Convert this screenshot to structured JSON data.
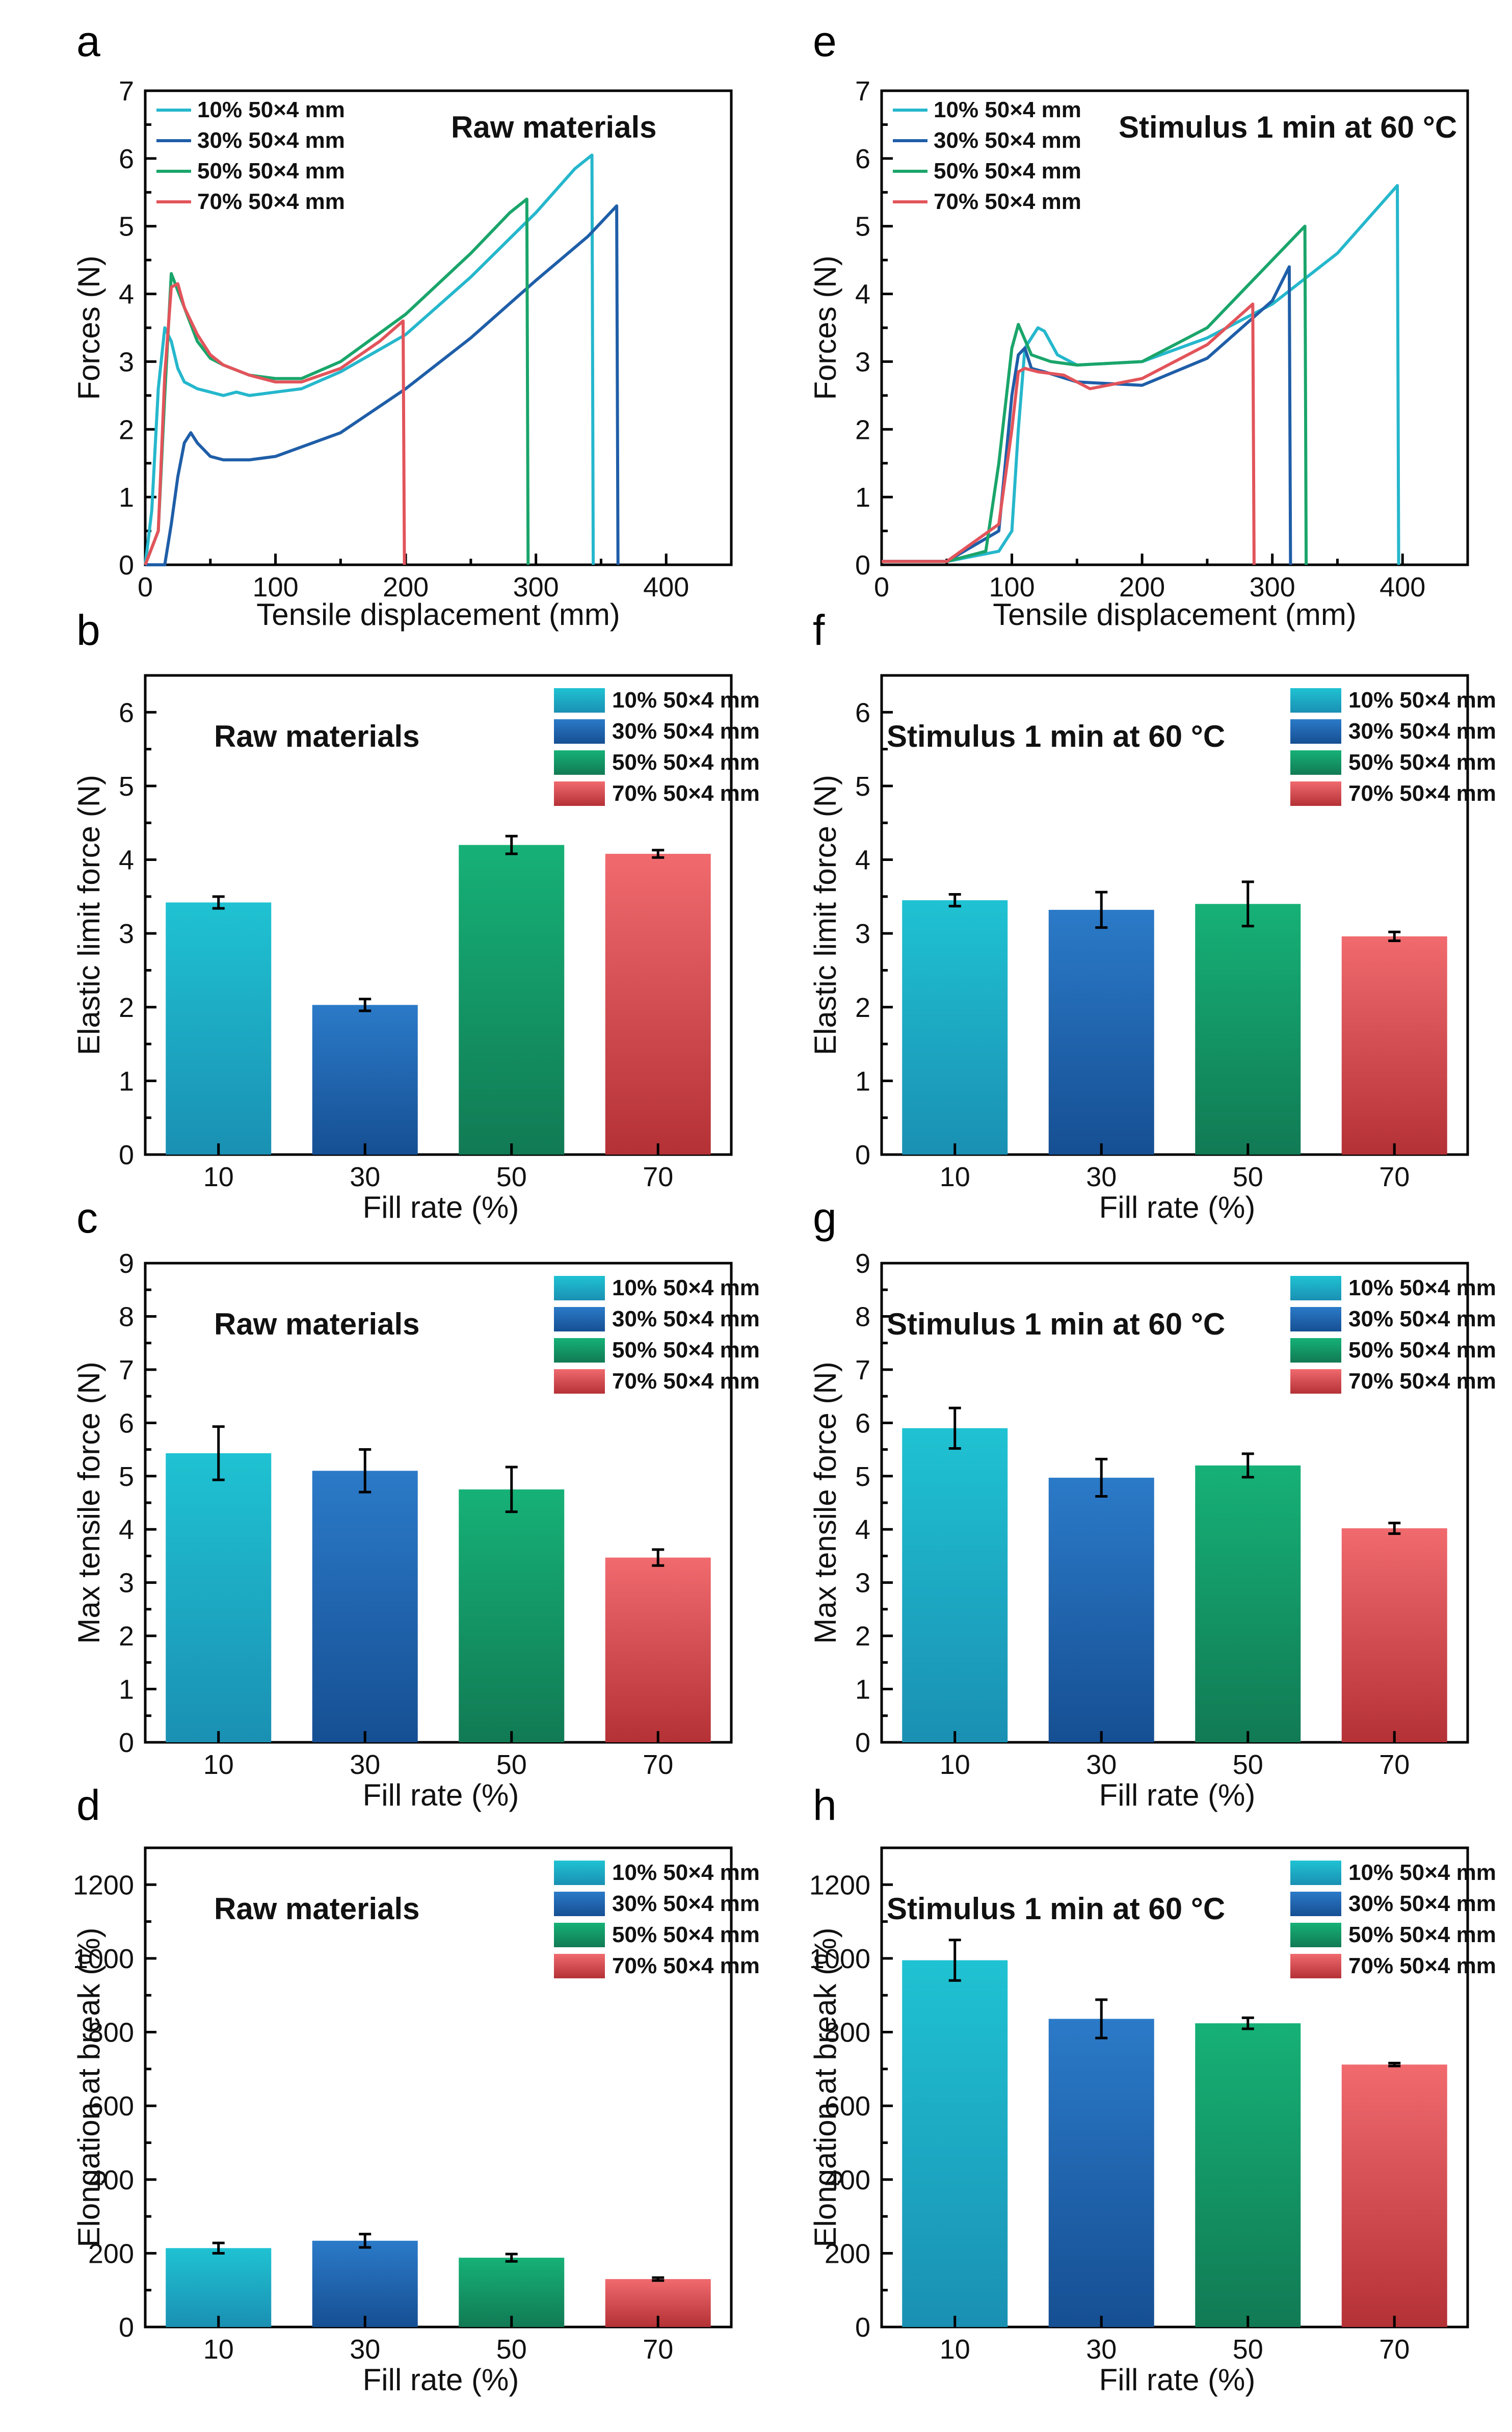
{
  "figure": {
    "series_names": [
      "10% 50×4 mm",
      "30% 50×4 mm",
      "50% 50×4 mm",
      "70% 50×4 mm"
    ],
    "colors": {
      "c10": "#25b7cc",
      "c30": "#1f5ea8",
      "c50": "#1aa56a",
      "c70": "#e2545b"
    }
  },
  "chart_data": [
    {
      "panel": "a",
      "type": "line",
      "annotation": "Raw materials",
      "xlabel": "Tensile displacement (mm)",
      "ylabel": "Forces (N)",
      "xlim": [
        0,
        450
      ],
      "ylim": [
        0,
        7
      ],
      "xticks": [
        0,
        100,
        200,
        300,
        400
      ],
      "yticks": [
        0,
        1,
        2,
        3,
        4,
        5,
        6,
        7
      ],
      "series": [
        {
          "name": "10% 50×4 mm",
          "color": "#25b7cc",
          "x": [
            0,
            5,
            10,
            15,
            20,
            25,
            30,
            40,
            50,
            60,
            70,
            80,
            100,
            120,
            150,
            200,
            250,
            300,
            330,
            343,
            344
          ],
          "y": [
            0,
            0.8,
            2.6,
            3.5,
            3.3,
            2.9,
            2.7,
            2.6,
            2.55,
            2.5,
            2.55,
            2.5,
            2.55,
            2.6,
            2.85,
            3.4,
            4.25,
            5.2,
            5.85,
            6.05,
            0
          ]
        },
        {
          "name": "30% 50×4 mm",
          "color": "#1f5ea8",
          "x": [
            0,
            15,
            20,
            25,
            30,
            35,
            40,
            50,
            60,
            70,
            80,
            100,
            150,
            200,
            250,
            300,
            340,
            362,
            363
          ],
          "y": [
            0,
            0,
            0.6,
            1.3,
            1.8,
            1.95,
            1.8,
            1.6,
            1.55,
            1.55,
            1.55,
            1.6,
            1.95,
            2.6,
            3.35,
            4.2,
            4.85,
            5.3,
            0
          ]
        },
        {
          "name": "50% 50×4 mm",
          "color": "#1aa56a",
          "x": [
            0,
            10,
            15,
            20,
            25,
            30,
            40,
            50,
            60,
            80,
            100,
            120,
            150,
            200,
            250,
            280,
            293,
            294
          ],
          "y": [
            0,
            0.5,
            2.5,
            4.3,
            4.05,
            3.8,
            3.3,
            3.05,
            2.95,
            2.8,
            2.75,
            2.75,
            3.0,
            3.7,
            4.6,
            5.2,
            5.4,
            0
          ]
        },
        {
          "name": "70% 50×4 mm",
          "color": "#e2545b",
          "x": [
            0,
            10,
            15,
            20,
            25,
            30,
            40,
            50,
            60,
            80,
            100,
            120,
            150,
            180,
            198,
            199
          ],
          "y": [
            0,
            0.5,
            2.8,
            4.1,
            4.15,
            3.8,
            3.4,
            3.1,
            2.95,
            2.8,
            2.7,
            2.7,
            2.9,
            3.3,
            3.6,
            0
          ]
        }
      ]
    },
    {
      "panel": "e",
      "type": "line",
      "annotation": "Stimulus 1 min at 60 °C",
      "xlabel": "Tensile displacement (mm)",
      "ylabel": "Forces (N)",
      "xlim": [
        0,
        450
      ],
      "ylim": [
        0,
        7
      ],
      "xticks": [
        0,
        100,
        200,
        300,
        400
      ],
      "yticks": [
        0,
        1,
        2,
        3,
        4,
        5,
        6,
        7
      ],
      "series": [
        {
          "name": "10% 50×4 mm",
          "color": "#25b7cc",
          "x": [
            0,
            50,
            90,
            100,
            105,
            110,
            115,
            120,
            125,
            135,
            150,
            200,
            250,
            300,
            350,
            396,
            397
          ],
          "y": [
            0.05,
            0.05,
            0.2,
            0.5,
            2.0,
            3.2,
            3.35,
            3.5,
            3.45,
            3.1,
            2.95,
            3.0,
            3.35,
            3.85,
            4.6,
            5.6,
            0
          ]
        },
        {
          "name": "30% 50×4 mm",
          "color": "#1f5ea8",
          "x": [
            0,
            50,
            90,
            100,
            105,
            110,
            115,
            125,
            150,
            200,
            250,
            300,
            313,
            314
          ],
          "y": [
            0.05,
            0.05,
            0.5,
            2.5,
            3.1,
            3.2,
            2.9,
            2.85,
            2.7,
            2.65,
            3.05,
            3.9,
            4.4,
            0
          ]
        },
        {
          "name": "50% 50×4 mm",
          "color": "#1aa56a",
          "x": [
            0,
            50,
            80,
            90,
            100,
            105,
            115,
            130,
            150,
            200,
            250,
            300,
            325,
            326
          ],
          "y": [
            0.05,
            0.05,
            0.2,
            1.5,
            3.2,
            3.55,
            3.1,
            3.0,
            2.95,
            3.0,
            3.5,
            4.5,
            5.0,
            0
          ]
        },
        {
          "name": "70% 50×4 mm",
          "color": "#e2545b",
          "x": [
            0,
            50,
            90,
            100,
            105,
            110,
            120,
            140,
            160,
            200,
            250,
            285,
            286
          ],
          "y": [
            0.05,
            0.05,
            0.6,
            2.0,
            2.85,
            2.9,
            2.85,
            2.8,
            2.6,
            2.75,
            3.25,
            3.85,
            0
          ]
        }
      ]
    },
    {
      "panel": "b",
      "type": "bar",
      "annotation": "Raw materials",
      "xlabel": "Fill rate (%)",
      "ylabel": "Elastic limit force (N)",
      "categories": [
        "10",
        "30",
        "50",
        "70"
      ],
      "values": [
        3.42,
        2.03,
        4.2,
        4.08
      ],
      "errors": [
        0.08,
        0.08,
        0.12,
        0.05
      ],
      "ylim": [
        0,
        6.5
      ],
      "yticks": [
        0,
        1,
        2,
        3,
        4,
        5,
        6
      ]
    },
    {
      "panel": "f",
      "type": "bar",
      "annotation": "Stimulus 1 min at 60 °C",
      "xlabel": "Fill rate (%)",
      "ylabel": "Elastic limit force (N)",
      "categories": [
        "10",
        "30",
        "50",
        "70"
      ],
      "values": [
        3.45,
        3.32,
        3.4,
        2.96
      ],
      "errors": [
        0.08,
        0.24,
        0.3,
        0.06
      ],
      "ylim": [
        0,
        6.5
      ],
      "yticks": [
        0,
        1,
        2,
        3,
        4,
        5,
        6
      ]
    },
    {
      "panel": "c",
      "type": "bar",
      "annotation": "Raw materials",
      "xlabel": "Fill rate (%)",
      "ylabel": "Max tensile force (N)",
      "categories": [
        "10",
        "30",
        "50",
        "70"
      ],
      "values": [
        5.43,
        5.1,
        4.75,
        3.47
      ],
      "errors": [
        0.5,
        0.4,
        0.42,
        0.15
      ],
      "ylim": [
        0,
        9
      ],
      "yticks": [
        0,
        1,
        2,
        3,
        4,
        5,
        6,
        7,
        8,
        9
      ]
    },
    {
      "panel": "g",
      "type": "bar",
      "annotation": "Stimulus 1 min at 60 °C",
      "xlabel": "Fill rate (%)",
      "ylabel": "Max tensile force (N)",
      "categories": [
        "10",
        "30",
        "50",
        "70"
      ],
      "values": [
        5.9,
        4.97,
        5.2,
        4.02
      ],
      "errors": [
        0.38,
        0.35,
        0.22,
        0.1
      ],
      "ylim": [
        0,
        9
      ],
      "yticks": [
        0,
        1,
        2,
        3,
        4,
        5,
        6,
        7,
        8,
        9
      ]
    },
    {
      "panel": "d",
      "type": "bar",
      "annotation": "Raw materials",
      "xlabel": "Fill rate (%)",
      "ylabel": "Elongation at break (%)",
      "categories": [
        "10",
        "30",
        "50",
        "70"
      ],
      "values": [
        214,
        234,
        188,
        130
      ],
      "errors": [
        14,
        18,
        10,
        4
      ],
      "ylim": [
        0,
        1300
      ],
      "yticks": [
        0,
        200,
        400,
        600,
        800,
        1000,
        1200
      ]
    },
    {
      "panel": "h",
      "type": "bar",
      "annotation": "Stimulus 1 min at 60 °C",
      "xlabel": "Fill rate (%)",
      "ylabel": "Elongation at break (%)",
      "categories": [
        "10",
        "30",
        "50",
        "70"
      ],
      "values": [
        995,
        836,
        824,
        712
      ],
      "errors": [
        55,
        52,
        15,
        4
      ],
      "ylim": [
        0,
        1300
      ],
      "yticks": [
        0,
        200,
        400,
        600,
        800,
        1000,
        1200
      ]
    }
  ]
}
